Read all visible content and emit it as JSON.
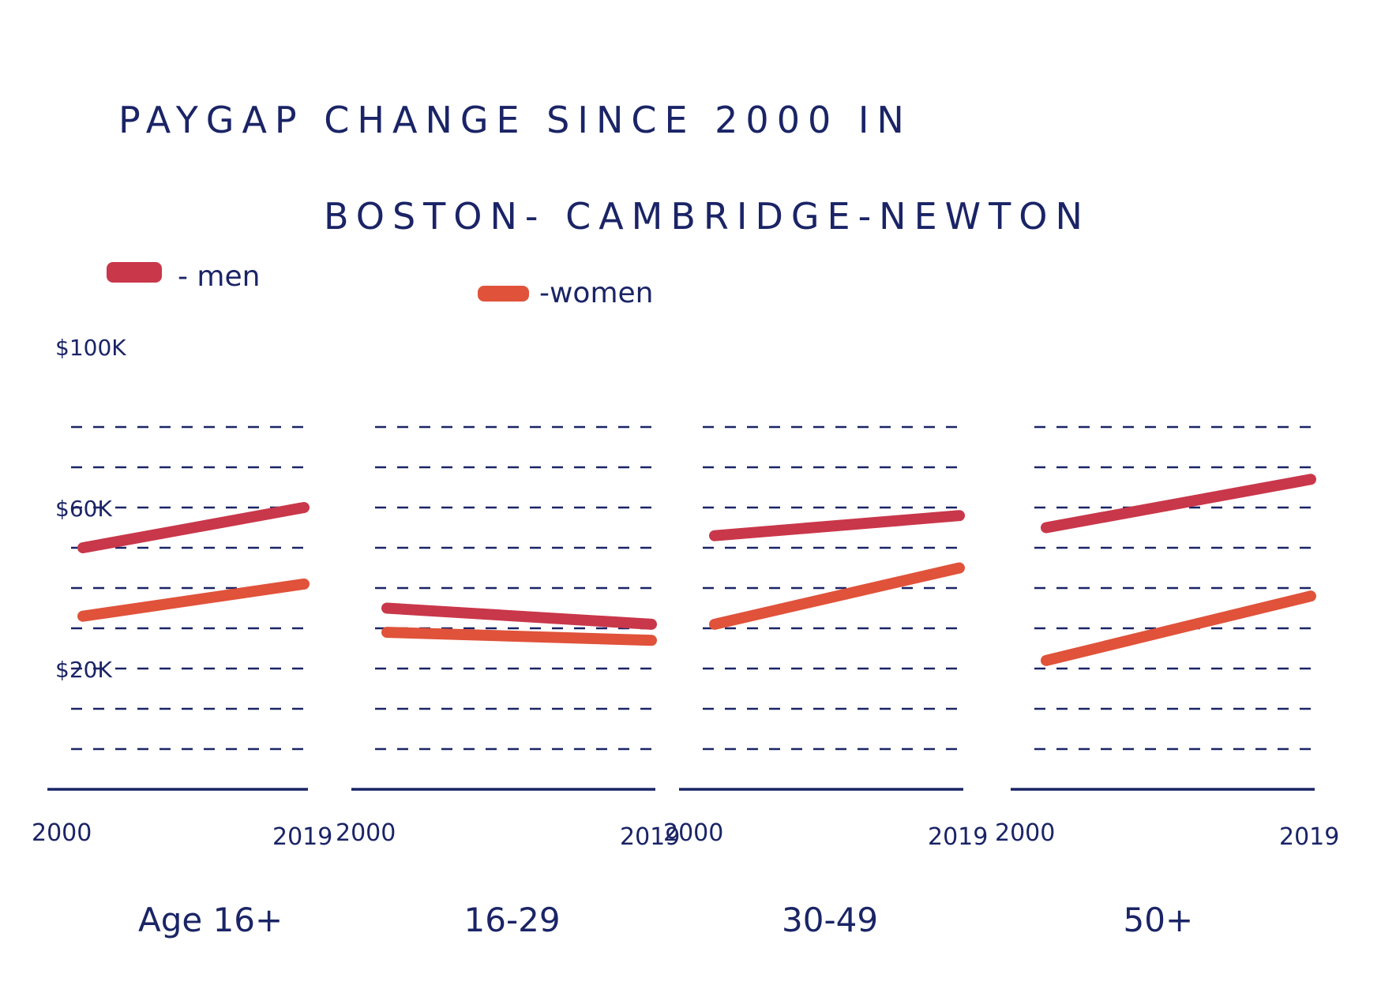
{
  "chart_data": {
    "type": "line",
    "title_lines": [
      "PAYGAP   CHANGE   SINCE 2000   IN",
      "BOSTON-  CAMBRIDGE-NEWTON"
    ],
    "legend": [
      {
        "label": "- men",
        "color": "#c9374a"
      },
      {
        "label": "-women",
        "color": "#e0523a"
      }
    ],
    "y_ticks": [
      {
        "value": 100,
        "label": "$100K"
      },
      {
        "value": 60,
        "label": "$60K"
      },
      {
        "value": 20,
        "label": "$20K"
      }
    ],
    "ylim": [
      0,
      100
    ],
    "grid_values": [
      10,
      20,
      30,
      40,
      50,
      60,
      70,
      80,
      90
    ],
    "groups": [
      {
        "label": "Age  16+",
        "x_labels": [
          "2000",
          "2019"
        ],
        "men": [
          60,
          70
        ],
        "women": [
          43,
          51
        ]
      },
      {
        "label": "16-29",
        "x_labels": [
          "2000",
          "2019"
        ],
        "men": [
          45,
          41
        ],
        "women": [
          39,
          37
        ]
      },
      {
        "label": "30-49",
        "x_labels": [
          "2000",
          "2019"
        ],
        "men": [
          63,
          68
        ],
        "women": [
          41,
          55
        ]
      },
      {
        "label": "50+",
        "x_labels": [
          "2000",
          "2019"
        ],
        "men": [
          65,
          77
        ],
        "women": [
          32,
          48
        ]
      }
    ]
  }
}
